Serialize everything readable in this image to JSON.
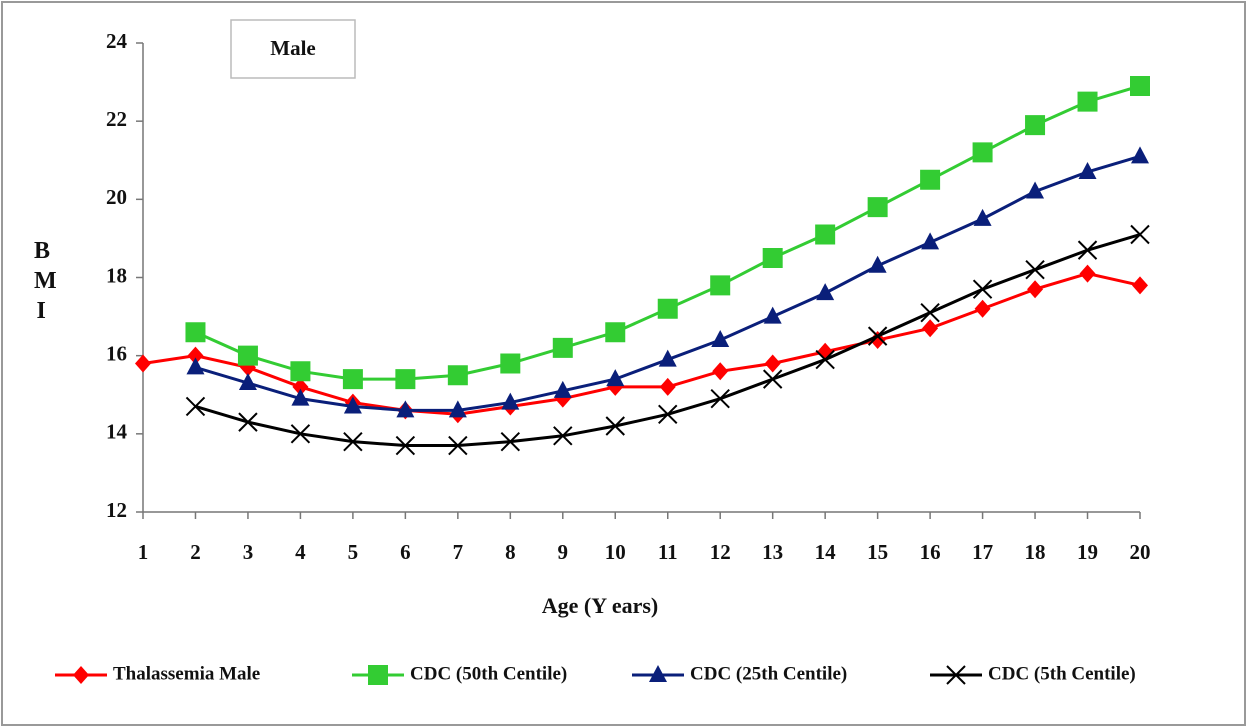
{
  "chart_data": {
    "type": "line",
    "title": "Male",
    "x_label": "Age (Y ears)",
    "y_label": "BMI",
    "x": [
      1,
      2,
      3,
      4,
      5,
      6,
      7,
      8,
      9,
      10,
      11,
      12,
      13,
      14,
      15,
      16,
      17,
      18,
      19,
      20
    ],
    "xlim": [
      1,
      20
    ],
    "xticks": [
      1,
      2,
      3,
      4,
      5,
      6,
      7,
      8,
      9,
      10,
      11,
      12,
      13,
      14,
      15,
      16,
      17,
      18,
      19,
      20
    ],
    "ylim": [
      12,
      24
    ],
    "yticks": [
      12,
      14,
      16,
      18,
      20,
      22,
      24
    ],
    "grid": false,
    "legend": "bottom",
    "series": [
      {
        "name": "Thalassemia Male",
        "color": "#ff0000",
        "marker": "diamond",
        "values": [
          15.8,
          16.0,
          15.7,
          15.2,
          14.8,
          14.6,
          14.5,
          14.7,
          14.9,
          15.2,
          15.2,
          15.6,
          15.8,
          16.1,
          16.4,
          16.7,
          17.2,
          17.7,
          18.1,
          17.8
        ]
      },
      {
        "name": "CDC (50th Centile)",
        "color": "#33cc33",
        "marker": "square",
        "values": [
          null,
          16.6,
          16.0,
          15.6,
          15.4,
          15.4,
          15.5,
          15.8,
          16.2,
          16.6,
          17.2,
          17.8,
          18.5,
          19.1,
          19.8,
          20.5,
          21.2,
          21.9,
          22.5,
          22.9
        ]
      },
      {
        "name": "CDC (25th Centile)",
        "color": "#0a1f7a",
        "marker": "triangle",
        "values": [
          null,
          15.7,
          15.3,
          14.9,
          14.7,
          14.6,
          14.6,
          14.8,
          15.1,
          15.4,
          15.9,
          16.4,
          17.0,
          17.6,
          18.3,
          18.9,
          19.5,
          20.2,
          20.7,
          21.1
        ]
      },
      {
        "name": "CDC (5th Centile)",
        "color": "#000000",
        "marker": "x",
        "values": [
          null,
          14.7,
          14.3,
          14.0,
          13.8,
          13.7,
          13.7,
          13.8,
          13.95,
          14.2,
          14.5,
          14.9,
          15.4,
          15.9,
          16.5,
          17.1,
          17.7,
          18.2,
          18.7,
          19.1
        ]
      }
    ]
  }
}
